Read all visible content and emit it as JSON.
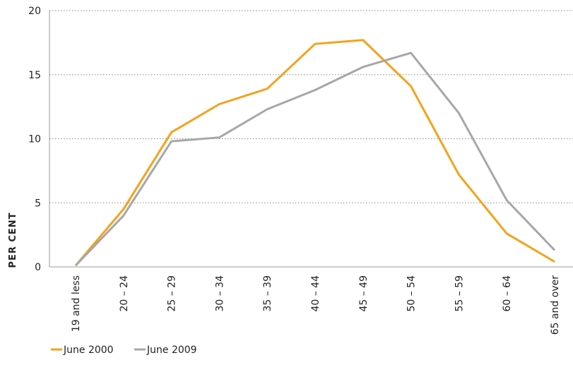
{
  "chart_data": {
    "type": "line",
    "ylabel": "PER CENT",
    "categories": [
      "19 and less",
      "20 – 24",
      "25 – 29",
      "30 – 34",
      "35 – 39",
      "40 – 44",
      "45 – 49",
      "50 – 54",
      "55 – 59",
      "60 – 64",
      "65 and over"
    ],
    "series": [
      {
        "name": "June 2000",
        "color": "#f4a21c",
        "values": [
          0.1,
          4.5,
          10.5,
          12.7,
          13.9,
          17.4,
          17.7,
          14.1,
          7.2,
          2.6,
          0.4
        ]
      },
      {
        "name": "June 2009",
        "color": "#a7a7a7",
        "values": [
          0.1,
          4.0,
          9.8,
          10.1,
          12.3,
          13.8,
          15.6,
          16.7,
          12.0,
          5.2,
          1.3
        ]
      }
    ],
    "ylim": [
      0,
      20
    ],
    "yticks": [
      0,
      5,
      10,
      15,
      20
    ],
    "grid": true
  }
}
